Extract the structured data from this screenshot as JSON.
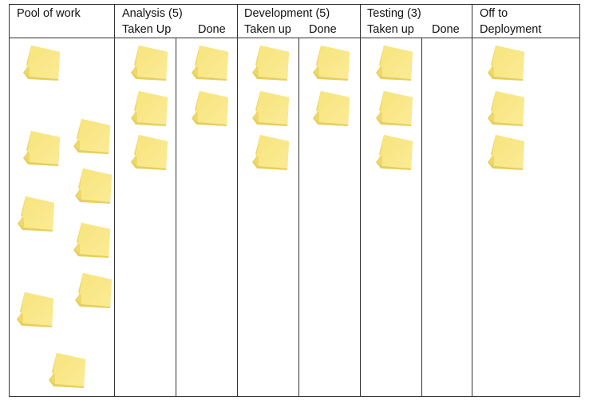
{
  "columns": [
    {
      "title": "Pool of work",
      "cards": 9
    },
    {
      "title": "Analysis (5)",
      "sub": [
        "Taken Up",
        "Done"
      ],
      "cards": [
        3,
        2
      ]
    },
    {
      "title": "Development (5)",
      "sub": [
        "Taken up",
        "Done"
      ],
      "cards": [
        3,
        2
      ]
    },
    {
      "title": "Testing (3)",
      "sub": [
        "Taken up",
        "Done"
      ],
      "cards": [
        3,
        0
      ]
    },
    {
      "title_lines": [
        "Off to",
        "Deployment"
      ],
      "cards": 3
    }
  ],
  "colors": {
    "sticky": "#f7e47c",
    "sticky_shade": "#e6cf5c",
    "border": "#333333"
  },
  "icons": {
    "card": "sticky-note-icon"
  }
}
